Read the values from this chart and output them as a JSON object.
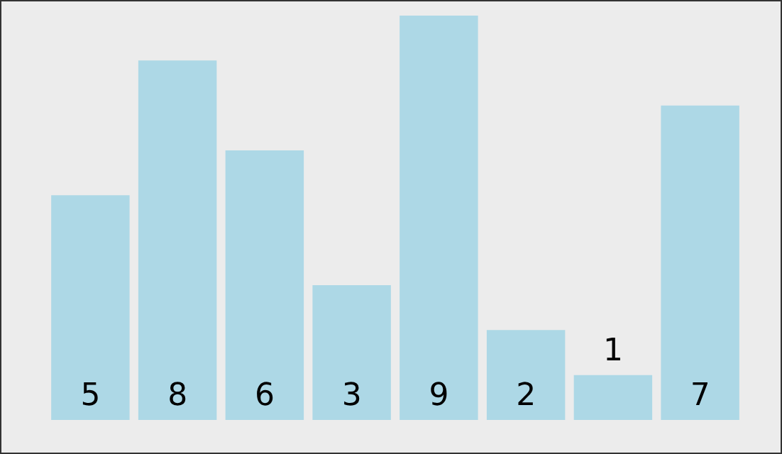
{
  "chart_data": {
    "type": "bar",
    "categories": [
      null,
      null,
      null,
      null,
      null,
      null,
      null,
      null
    ],
    "values": [
      5,
      8,
      6,
      3,
      9,
      2,
      1,
      7
    ],
    "color": "#add8e6",
    "data_labels": true
  }
}
